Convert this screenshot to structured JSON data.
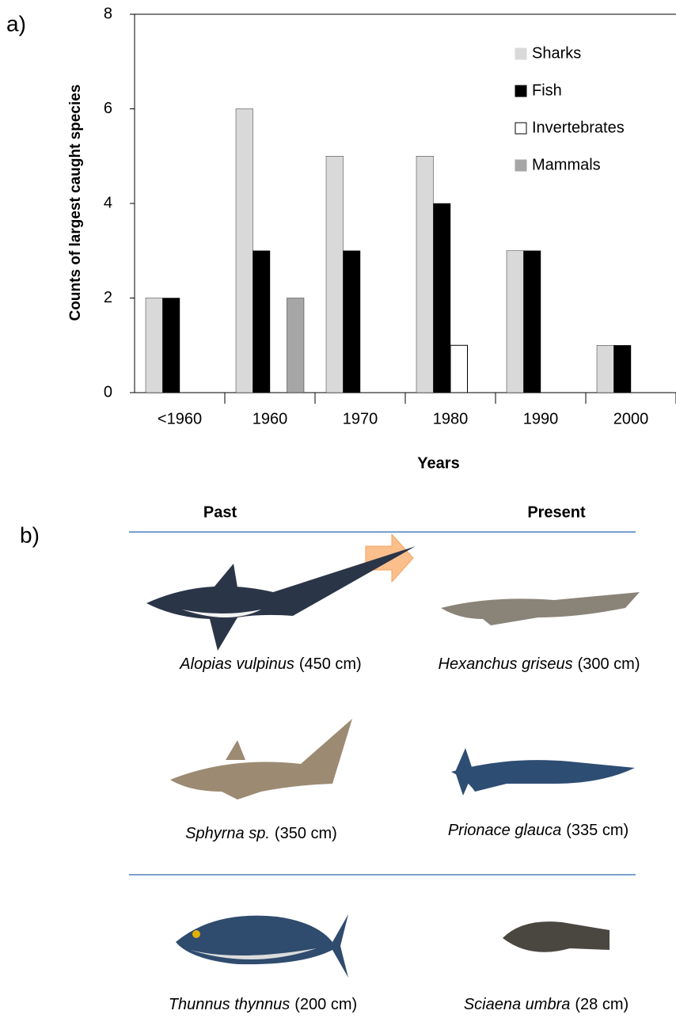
{
  "panel_a_label": "a)",
  "chart_data": {
    "type": "bar",
    "ylabel": "Counts of largest caught species",
    "xlabel": "Years",
    "categories": [
      "<1960",
      "1960",
      "1970",
      "1980",
      "1990",
      "2000"
    ],
    "series": [
      {
        "name": "Sharks",
        "color": "#d9d9d9",
        "values": [
          2,
          6,
          5,
          5,
          3,
          1
        ]
      },
      {
        "name": "Fish",
        "color": "#000000",
        "values": [
          2,
          3,
          3,
          4,
          3,
          1
        ]
      },
      {
        "name": "Invertebrates",
        "color": "#ffffff",
        "values": [
          0,
          0,
          0,
          1,
          0,
          0
        ]
      },
      {
        "name": "Mammals",
        "color": "#a6a6a6",
        "values": [
          0,
          2,
          0,
          0,
          0,
          0
        ]
      }
    ],
    "ylim": [
      0,
      8
    ],
    "yticks": [
      0,
      2,
      4,
      6,
      8
    ],
    "legend": "upper right"
  },
  "panel_b": {
    "label": "b)",
    "headers": [
      "Past",
      "Present"
    ],
    "species": [
      {
        "name": "Alopias vulpinus",
        "size": "(450 cm)"
      },
      {
        "name": "Hexanchus griseus",
        "size": "(300 cm)"
      },
      {
        "name": "Sphyrna sp.",
        "size": "(350 cm)"
      },
      {
        "name": "Prionace glauca",
        "size": "(335 cm)"
      },
      {
        "name": "Thunnus thynnus",
        "size": "(200 cm)"
      },
      {
        "name": "Sciaena umbra",
        "size": "(28 cm)"
      }
    ]
  }
}
